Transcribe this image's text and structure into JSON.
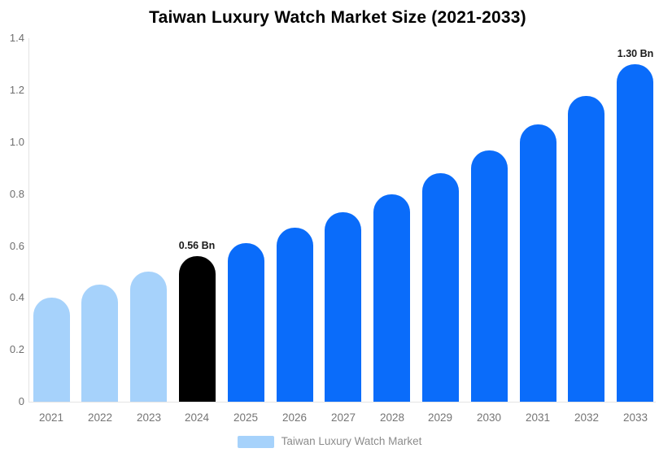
{
  "chart_data": {
    "type": "bar",
    "title": "Taiwan Luxury Watch Market Size (2021-2033)",
    "categories": [
      "2021",
      "2022",
      "2023",
      "2024",
      "2025",
      "2026",
      "2027",
      "2028",
      "2029",
      "2030",
      "2031",
      "2032",
      "2033"
    ],
    "values": [
      0.4,
      0.45,
      0.5,
      0.56,
      0.61,
      0.67,
      0.73,
      0.8,
      0.88,
      0.97,
      1.07,
      1.18,
      1.3
    ],
    "point_labels": [
      "",
      "",
      "",
      "0.56 Bn",
      "",
      "",
      "",
      "",
      "",
      "",
      "",
      "",
      "1.30 Bn"
    ],
    "bar_colors": [
      "#a6d2fb",
      "#a6d2fb",
      "#a6d2fb",
      "#000000",
      "#0a6cfa",
      "#0a6cfa",
      "#0a6cfa",
      "#0a6cfa",
      "#0a6cfa",
      "#0a6cfa",
      "#0a6cfa",
      "#0a6cfa",
      "#0a6cfa"
    ],
    "unit": "Bn",
    "ylim": [
      0,
      1.4
    ],
    "y_ticks": [
      0,
      0.2,
      0.4,
      0.6,
      0.8,
      1.0,
      1.2,
      1.4
    ],
    "grid": "off",
    "legend_position": "bottom",
    "legend": [
      {
        "label": "Taiwan Luxury Watch Market",
        "color": "#a6d2fb"
      }
    ],
    "colors": {
      "historical_bar": "#a6d2fb",
      "base_year_bar": "#000000",
      "forecast_bar": "#0a6cfa",
      "axis_line": "#e4e4e4",
      "tick_text": "#6e6e6e",
      "category_text": "#757575",
      "value_label_text": "#1a1a1a",
      "legend_text": "#8c8c8c",
      "title_text": "#000000",
      "background": "#ffffff"
    }
  }
}
